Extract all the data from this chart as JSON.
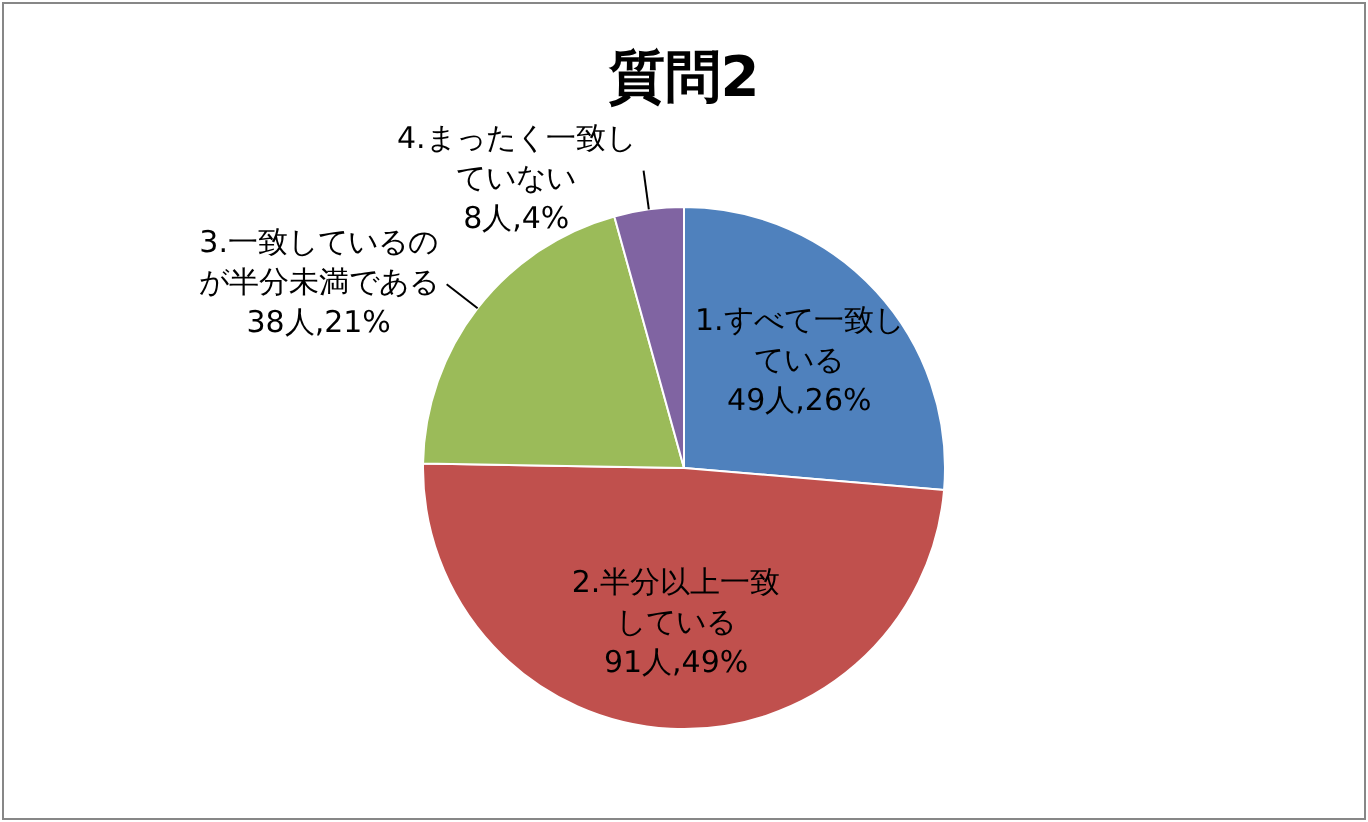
{
  "chart_data": {
    "type": "pie",
    "title": "質問2",
    "categories": [
      "1.すべて一致している",
      "2.半分以上一致している",
      "3.一致しているのが半分未満である",
      "4.まったく一致していない"
    ],
    "values": [
      49,
      91,
      38,
      8
    ],
    "colors": [
      "#4f81bd",
      "#c0504d",
      "#9bbb59",
      "#8064a2"
    ],
    "value_labels": [
      "49人,26%",
      "91人,49%",
      "38人,21%",
      "8人,4%"
    ],
    "legend": false
  }
}
